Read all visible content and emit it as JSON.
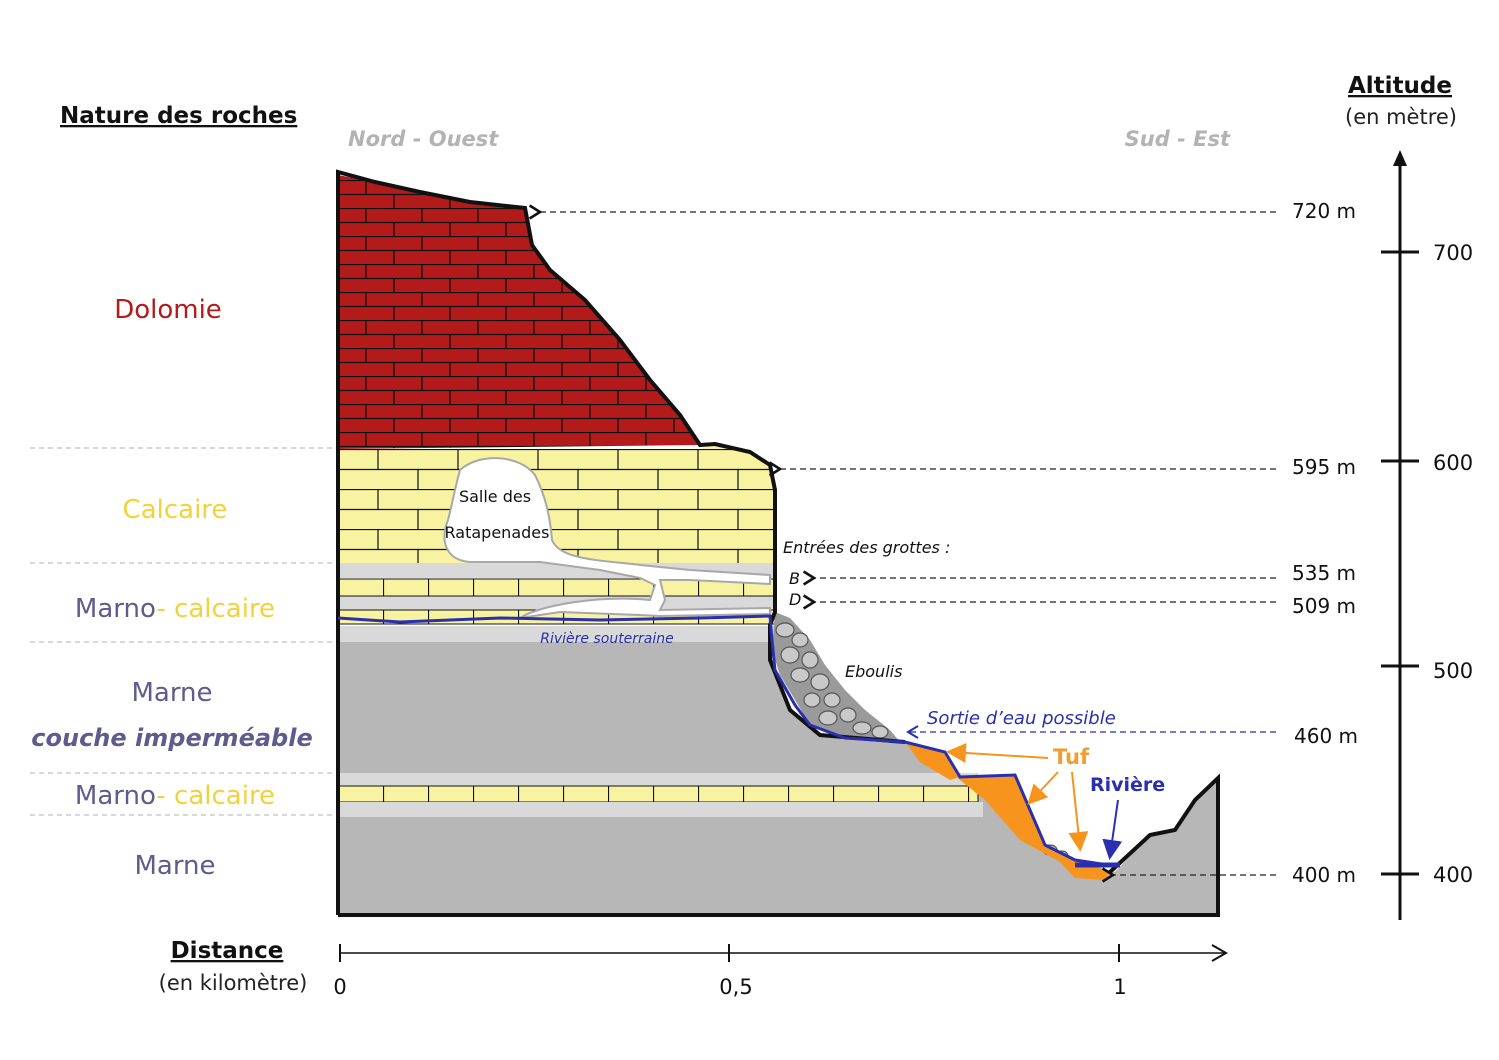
{
  "headings": {
    "rocks": "Nature des roches",
    "altitude": "Altitude",
    "altitude_unit": "(en mètre)",
    "distance": "Distance",
    "distance_unit": "(en kilomètre)"
  },
  "orientation": {
    "left": "Nord - Ouest",
    "right": "Sud - Est"
  },
  "rock_layers": [
    {
      "label": "Dolomie",
      "color": "#b31b1b"
    },
    {
      "label": "Calcaire",
      "color": "#f2d23a"
    },
    {
      "label_a": "Marno",
      "label_b": "- calcaire",
      "color_a": "#5f5b8c",
      "color_b": "#f2d23a"
    },
    {
      "label": "Marne",
      "sublabel": "couche imperméable",
      "color": "#5f5b8c"
    },
    {
      "label_a": "Marno",
      "label_b": "- calcaire",
      "color_a": "#5f5b8c",
      "color_b": "#f2d23a"
    },
    {
      "label": "Marne",
      "color": "#5f5b8c"
    }
  ],
  "altitude_axis": {
    "ticks": [
      "700",
      "600",
      "500",
      "400"
    ]
  },
  "distance_axis": {
    "ticks": [
      "0",
      "0,5",
      "1"
    ]
  },
  "altitude_markers": [
    "720 m",
    "595 m",
    "535 m",
    "509 m",
    "460 m",
    "400 m"
  ],
  "annotations": {
    "cave_room_line1": "Salle des",
    "cave_room_line2": "Ratapenades",
    "cave_entrances": "Entrées des grottes :",
    "entrance_b": "B",
    "entrance_d": "D",
    "underground_river": "Rivière souterraine",
    "scree": "Eboulis",
    "water_exit": "Sortie d’eau possible",
    "tufa": "Tuf",
    "river": "Rivière"
  },
  "colors": {
    "dolomite": "#b31b1b",
    "limestone": "#f8f3a0",
    "marl": "#b7b7b7",
    "marl_light": "#d9d9d9",
    "river": "#2a2fb0",
    "tufa": "#f7941d",
    "tufa_text": "#f29e2e"
  }
}
